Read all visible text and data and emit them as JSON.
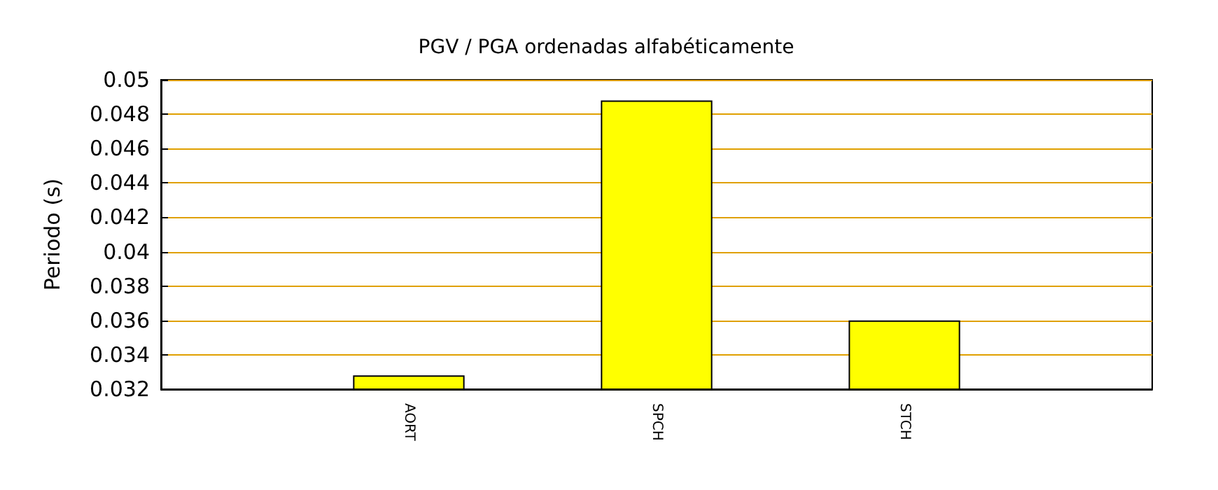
{
  "chart_data": {
    "type": "bar",
    "title": "PGV / PGA ordenadas alfabéticamente",
    "ylabel": "Periodo (s)",
    "categories": [
      null,
      "AORT",
      "SPCH",
      "STCH",
      null
    ],
    "values": [
      null,
      0.0328,
      0.0488,
      0.036,
      null
    ],
    "color": "#ffff00",
    "ylim": [
      0.032,
      0.05
    ],
    "yticks": [
      0.032,
      0.034,
      0.036,
      0.038,
      0.04,
      0.042,
      0.044,
      0.046,
      0.048,
      0.05
    ],
    "grid": "y"
  }
}
